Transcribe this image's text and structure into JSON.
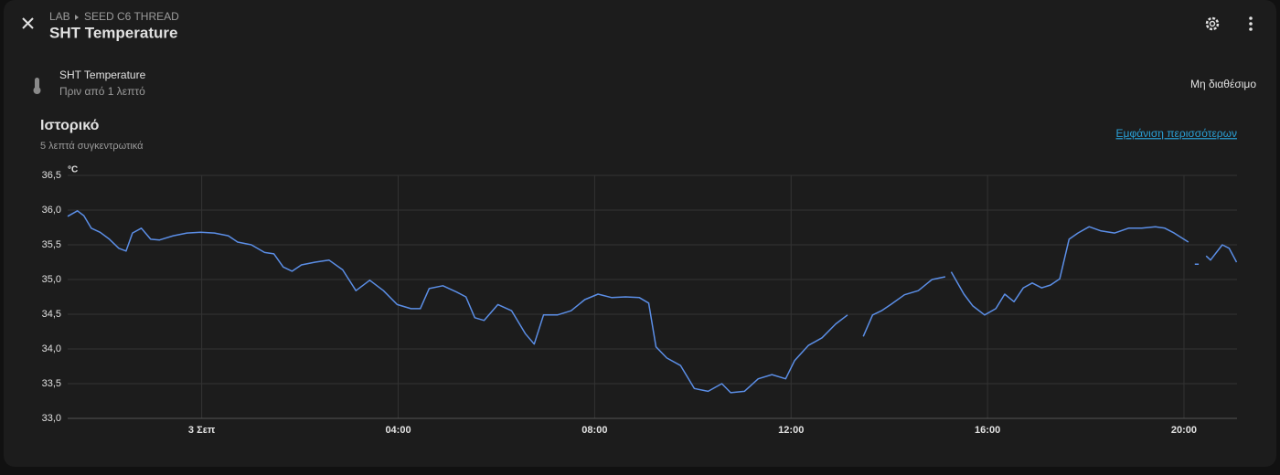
{
  "header": {
    "breadcrumb": [
      "LAB",
      "SEED C6 THREAD"
    ],
    "title": "SHT Temperature"
  },
  "entity": {
    "name": "SHT Temperature",
    "last_changed": "Πριν από 1 λεπτό",
    "state": "Μη διαθέσιμο"
  },
  "history": {
    "title": "Ιστορικό",
    "subtitle": "5 λεπτά συγκεντρωτικά",
    "link": "Εμφάνιση περισσότερων"
  },
  "chart_data": {
    "type": "line",
    "y_unit": "°C",
    "x": [
      -2.73,
      -2.53,
      -2.4,
      -2.25,
      -2.07,
      -1.88,
      -1.69,
      -1.54,
      -1.41,
      -1.23,
      -1.04,
      -0.86,
      -0.58,
      -0.3,
      -0.02,
      0.26,
      0.54,
      0.73,
      1.01,
      1.28,
      1.47,
      1.66,
      1.84,
      2.03,
      2.31,
      2.59,
      2.87,
      3.14,
      3.42,
      3.7,
      3.98,
      4.26,
      4.45,
      4.63,
      4.91,
      5.19,
      5.38,
      5.56,
      5.75,
      6.03,
      6.31,
      6.59,
      6.77,
      6.96,
      7.24,
      7.52,
      7.8,
      8.07,
      8.35,
      8.63,
      8.91,
      9.1,
      9.25,
      9.47,
      9.75,
      10.03,
      10.31,
      10.59,
      10.77,
      11.05,
      11.33,
      11.61,
      11.89,
      12.07,
      12.35,
      12.63,
      12.91,
      13.15,
      13.3,
      13.47,
      13.66,
      13.84,
      14.03,
      14.31,
      14.59,
      14.87,
      15.14,
      15.2,
      15.26,
      15.52,
      15.7,
      15.94,
      16.17,
      16.35,
      16.54,
      16.73,
      16.91,
      17.1,
      17.28,
      17.47,
      17.66,
      17.84,
      18.07,
      18.31,
      18.59,
      18.87,
      19.14,
      19.42,
      19.61,
      19.8,
      20.09,
      20.15,
      20.22,
      20.3,
      20.37,
      20.45,
      20.54,
      20.78,
      20.92,
      21.07
    ],
    "xlim": [
      -2.73,
      21.08
    ],
    "xticks": [
      {
        "value": 0,
        "label": "3 Σεπ"
      },
      {
        "value": 4,
        "label": "04:00"
      },
      {
        "value": 8,
        "label": "08:00"
      },
      {
        "value": 12,
        "label": "12:00"
      },
      {
        "value": 16,
        "label": "16:00"
      },
      {
        "value": 20,
        "label": "20:00"
      }
    ],
    "ylim": [
      33,
      36.5
    ],
    "yticks": [
      {
        "value": 33,
        "label": "33,0"
      },
      {
        "value": 33.5,
        "label": "33,5"
      },
      {
        "value": 34,
        "label": "34,0"
      },
      {
        "value": 34.5,
        "label": "34,5"
      },
      {
        "value": 35,
        "label": "35,0"
      },
      {
        "value": 35.5,
        "label": "35,5"
      },
      {
        "value": 36,
        "label": "36,0"
      },
      {
        "value": 36.5,
        "label": "36,5"
      }
    ],
    "grid": true,
    "series": [
      {
        "color": "#5b8ee6",
        "values": [
          35.91,
          35.99,
          35.92,
          35.74,
          35.68,
          35.58,
          35.45,
          35.41,
          35.67,
          35.74,
          35.58,
          35.57,
          35.63,
          35.67,
          35.68,
          35.67,
          35.63,
          35.54,
          35.5,
          35.39,
          35.37,
          35.18,
          35.12,
          35.21,
          35.25,
          35.28,
          35.14,
          34.84,
          34.99,
          34.84,
          34.64,
          34.58,
          34.58,
          34.87,
          34.91,
          34.82,
          34.75,
          34.45,
          34.41,
          34.64,
          34.55,
          34.22,
          34.07,
          34.49,
          34.49,
          34.55,
          34.71,
          34.79,
          34.74,
          34.75,
          34.74,
          34.66,
          34.03,
          33.87,
          33.76,
          33.43,
          33.39,
          33.5,
          33.37,
          33.39,
          33.57,
          33.63,
          33.57,
          33.83,
          34.05,
          34.16,
          34.36,
          34.49,
          null,
          34.18,
          34.49,
          34.55,
          34.64,
          34.78,
          34.84,
          35.0,
          35.04,
          null,
          35.11,
          34.79,
          34.62,
          34.49,
          34.58,
          34.79,
          34.68,
          34.88,
          34.95,
          34.88,
          34.92,
          35.01,
          35.58,
          35.67,
          35.76,
          35.7,
          35.67,
          35.74,
          35.74,
          35.76,
          35.74,
          35.67,
          35.54,
          null,
          35.22,
          35.22,
          null,
          35.34,
          35.28,
          35.5,
          35.45,
          35.25
        ]
      }
    ]
  }
}
